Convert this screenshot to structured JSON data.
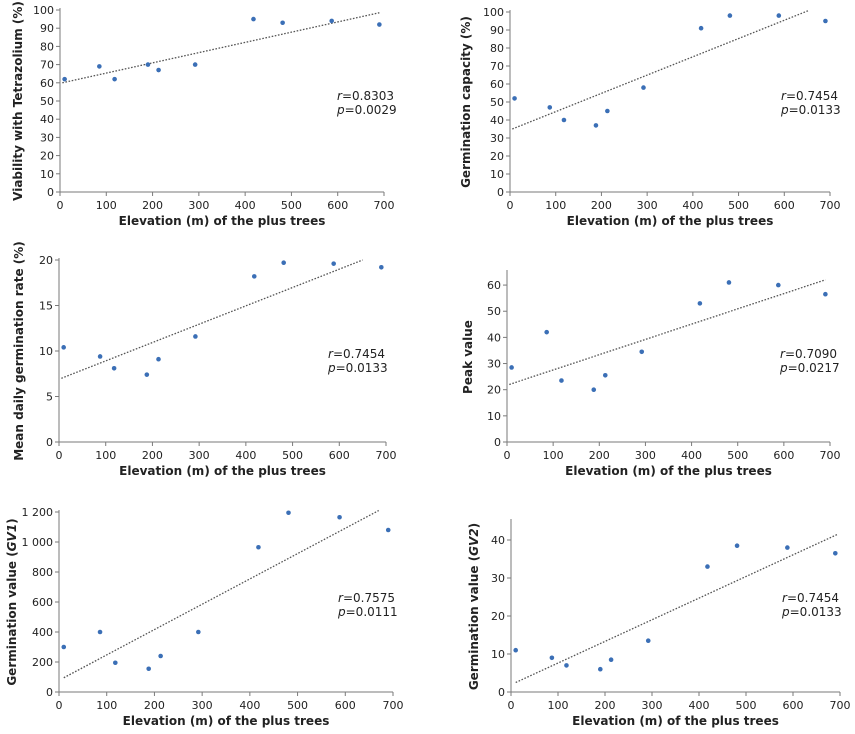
{
  "chart_data": [
    {
      "type": "scatter",
      "title": "",
      "xlabel": "Elevation (m) of the plus trees",
      "ylabel_parts": [
        {
          "text": "Viability with Tetrazolium (%)",
          "italic": false
        }
      ],
      "xlim": [
        0,
        700
      ],
      "ylim": [
        0,
        100
      ],
      "xticks": [
        0,
        100,
        200,
        300,
        400,
        500,
        600,
        700
      ],
      "yticks": [
        0,
        10,
        20,
        30,
        40,
        50,
        60,
        70,
        80,
        90,
        100
      ],
      "ytick_labels": [
        "0",
        "10",
        "20",
        "30",
        "40",
        "50",
        "60",
        "70",
        "80",
        "90",
        "100"
      ],
      "x": [
        10,
        85,
        118,
        190,
        213,
        292,
        418,
        481,
        587,
        690
      ],
      "y": [
        62,
        69,
        62,
        70,
        67,
        70,
        95,
        93,
        94,
        92
      ],
      "trendline": {
        "x": [
          5,
          690
        ],
        "y": [
          60,
          98.5
        ]
      },
      "r_prefix": "r",
      "r_value": "=0.8303",
      "p_prefix": "p",
      "p_value": "=0.0029",
      "grid": false
    },
    {
      "type": "scatter",
      "title": "",
      "xlabel": "Elevation (m) of the plus trees",
      "ylabel_parts": [
        {
          "text": "Germination capacity (%)",
          "italic": false
        }
      ],
      "xlim": [
        0,
        700
      ],
      "ylim": [
        0,
        100
      ],
      "xticks": [
        0,
        100,
        200,
        300,
        400,
        500,
        600,
        700
      ],
      "yticks": [
        0,
        10,
        20,
        30,
        40,
        50,
        60,
        70,
        80,
        90,
        100
      ],
      "ytick_labels": [
        "0",
        "10",
        "20",
        "30",
        "40",
        "50",
        "60",
        "70",
        "80",
        "90",
        "100"
      ],
      "x": [
        10,
        87,
        118,
        188,
        213,
        292,
        418,
        481,
        588,
        690
      ],
      "y": [
        52,
        47,
        40,
        37,
        45,
        58,
        91,
        98,
        98,
        95
      ],
      "trendline": {
        "x": [
          5,
          655
        ],
        "y": [
          35,
          101
        ]
      },
      "r_prefix": "r",
      "r_value": "=0.7454",
      "p_prefix": "p",
      "p_value": "=0.0133",
      "grid": false
    },
    {
      "type": "scatter",
      "title": "",
      "xlabel": "Elevation (m) of the plus trees",
      "ylabel_parts": [
        {
          "text": "Mean daily germination rate (%)",
          "italic": false
        }
      ],
      "xlim": [
        0,
        700
      ],
      "ylim": [
        0,
        20
      ],
      "xticks": [
        0,
        100,
        200,
        300,
        400,
        500,
        600,
        700
      ],
      "yticks": [
        0,
        5,
        10,
        15,
        20
      ],
      "ytick_labels": [
        "0",
        "5",
        "10",
        "15",
        "20"
      ],
      "x": [
        10,
        88,
        118,
        188,
        213,
        292,
        418,
        481,
        588,
        690
      ],
      "y": [
        10.4,
        9.4,
        8.1,
        7.4,
        9.1,
        11.6,
        18.2,
        19.7,
        19.6,
        19.2
      ],
      "trendline": {
        "x": [
          5,
          650
        ],
        "y": [
          7.0,
          20.0
        ]
      },
      "r_prefix": "r",
      "r_value": "=0.7454",
      "p_prefix": "p",
      "p_value": "=0.0133",
      "grid": false
    },
    {
      "type": "scatter",
      "title": "",
      "xlabel": "Elevation (m) of the plus trees",
      "ylabel_parts": [
        {
          "text": "Peak value",
          "italic": false
        }
      ],
      "xlim": [
        0,
        700
      ],
      "ylim": [
        0,
        65
      ],
      "xticks": [
        0,
        100,
        200,
        300,
        400,
        500,
        600,
        700
      ],
      "yticks": [
        0,
        10,
        20,
        30,
        40,
        50,
        60
      ],
      "ytick_labels": [
        "0",
        "10",
        "20",
        "30",
        "40",
        "50",
        "60"
      ],
      "x": [
        10,
        86,
        118,
        188,
        213,
        292,
        418,
        481,
        588,
        690
      ],
      "y": [
        28.5,
        42,
        23.5,
        20,
        25.5,
        34.5,
        53,
        61,
        60,
        56.5
      ],
      "trendline": {
        "x": [
          5,
          690
        ],
        "y": [
          22,
          62
        ]
      },
      "r_prefix": "r",
      "r_value": "=0.7090",
      "p_prefix": "p",
      "p_value": "=0.0217",
      "grid": false
    },
    {
      "type": "scatter",
      "title": "",
      "xlabel": "Elevation (m) of the plus trees",
      "ylabel_parts": [
        {
          "text": "Germination value (",
          "italic": false
        },
        {
          "text": "GV1",
          "italic": true
        },
        {
          "text": ")",
          "italic": false
        }
      ],
      "xlim": [
        0,
        700
      ],
      "ylim": [
        0,
        1200
      ],
      "xticks": [
        0,
        100,
        200,
        300,
        400,
        500,
        600,
        700
      ],
      "yticks": [
        0,
        200,
        400,
        600,
        800,
        1000,
        1200
      ],
      "ytick_labels": [
        "0",
        "200",
        "400",
        "600",
        "800",
        "1 000",
        "1 200"
      ],
      "x": [
        10,
        86,
        118,
        188,
        213,
        292,
        418,
        481,
        588,
        690
      ],
      "y": [
        300,
        400,
        195,
        155,
        240,
        400,
        965,
        1195,
        1165,
        1080
      ],
      "trendline": {
        "x": [
          10,
          670
        ],
        "y": [
          95,
          1210
        ]
      },
      "r_prefix": "r",
      "r_value": "=0.7575",
      "p_prefix": "p",
      "p_value": "=0.0111",
      "grid": false
    },
    {
      "type": "scatter",
      "title": "",
      "xlabel": "Elevation (m) of the plus trees",
      "ylabel_parts": [
        {
          "text": "Germination value (",
          "italic": false
        },
        {
          "text": "GV2",
          "italic": true
        },
        {
          "text": ")",
          "italic": false
        }
      ],
      "xlim": [
        0,
        700
      ],
      "ylim": [
        0,
        45
      ],
      "xticks": [
        0,
        100,
        200,
        300,
        400,
        500,
        600,
        700
      ],
      "yticks": [
        0,
        10,
        20,
        30,
        40
      ],
      "ytick_labels": [
        "0",
        "10",
        "20",
        "30",
        "40"
      ],
      "x": [
        10,
        87,
        118,
        190,
        213,
        292,
        418,
        481,
        588,
        690
      ],
      "y": [
        11,
        9,
        7,
        6,
        8.5,
        13.5,
        33,
        38.5,
        38,
        36.5
      ],
      "trendline": {
        "x": [
          10,
          695
        ],
        "y": [
          2.5,
          41.5
        ]
      },
      "r_prefix": "r",
      "r_value": "=0.7454",
      "p_prefix": "p",
      "p_value": "=0.0133",
      "grid": false
    }
  ]
}
